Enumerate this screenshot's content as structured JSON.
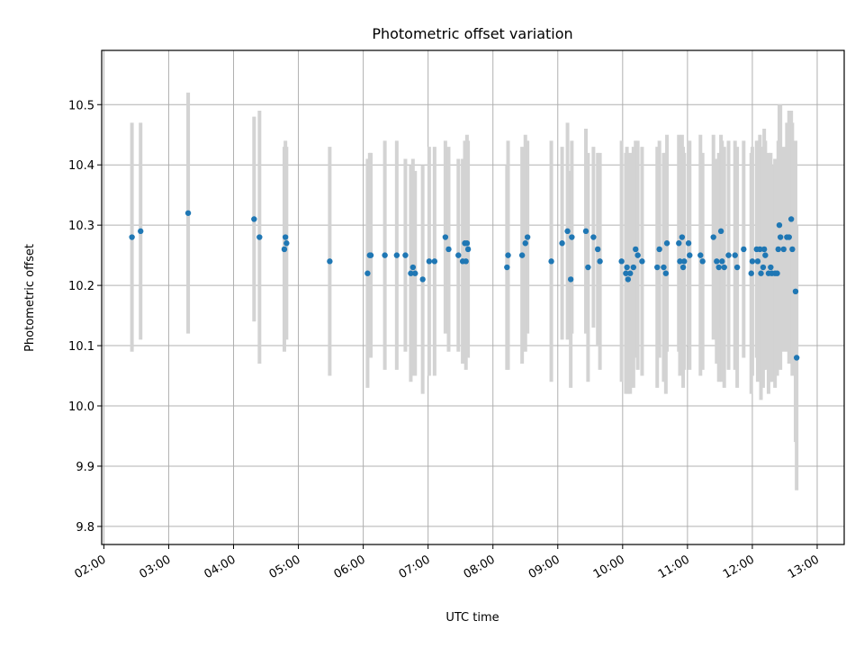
{
  "chart_data": {
    "type": "scatter",
    "title": "Photometric offset variation",
    "xlabel": "UTC time",
    "ylabel": "Photometric offset",
    "x_unit": "hours UTC",
    "xlim": [
      "01:58",
      "13:25"
    ],
    "ylim": [
      9.77,
      10.59
    ],
    "x_ticks": [
      "02:00",
      "03:00",
      "04:00",
      "05:00",
      "06:00",
      "07:00",
      "08:00",
      "09:00",
      "10:00",
      "11:00",
      "12:00",
      "13:00"
    ],
    "y_ticks": [
      "9.8",
      "9.9",
      "10.0",
      "10.1",
      "10.2",
      "10.3",
      "10.4",
      "10.5"
    ],
    "grid": true,
    "legend": "none",
    "colors": {
      "point": "#1f77b4",
      "errorbar": "#d3d3d3",
      "grid": "#b0b0b0"
    },
    "series": [
      {
        "points": [
          [
            "02:26",
            10.28,
            0.19
          ],
          [
            "02:34",
            10.29,
            0.18
          ],
          [
            "03:18",
            10.32,
            0.2
          ],
          [
            "04:19",
            10.31,
            0.17
          ],
          [
            "04:24",
            10.28,
            0.21
          ],
          [
            "04:47",
            10.26,
            0.17
          ],
          [
            "04:48",
            10.28,
            0.16
          ],
          [
            "04:49",
            10.27,
            0.16
          ],
          [
            "05:29",
            10.24,
            0.19
          ],
          [
            "06:04",
            10.22,
            0.19
          ],
          [
            "06:06",
            10.25,
            0.17
          ],
          [
            "06:07",
            10.25,
            0.17
          ],
          [
            "06:20",
            10.25,
            0.19
          ],
          [
            "06:31",
            10.25,
            0.19
          ],
          [
            "06:39",
            10.25,
            0.16
          ],
          [
            "06:44",
            10.22,
            0.18
          ],
          [
            "06:46",
            10.23,
            0.18
          ],
          [
            "06:48",
            10.22,
            0.17
          ],
          [
            "06:55",
            10.21,
            0.19
          ],
          [
            "07:01",
            10.24,
            0.19
          ],
          [
            "07:06",
            10.24,
            0.19
          ],
          [
            "07:16",
            10.28,
            0.16
          ],
          [
            "07:19",
            10.26,
            0.17
          ],
          [
            "07:28",
            10.25,
            0.16
          ],
          [
            "07:32",
            10.24,
            0.17
          ],
          [
            "07:34",
            10.27,
            0.17
          ],
          [
            "07:35",
            10.24,
            0.18
          ],
          [
            "07:36",
            10.27,
            0.18
          ],
          [
            "07:37",
            10.26,
            0.18
          ],
          [
            "08:13",
            10.23,
            0.17
          ],
          [
            "08:14",
            10.25,
            0.19
          ],
          [
            "08:27",
            10.25,
            0.18
          ],
          [
            "08:30",
            10.27,
            0.18
          ],
          [
            "08:32",
            10.28,
            0.16
          ],
          [
            "08:54",
            10.24,
            0.2
          ],
          [
            "09:04",
            10.27,
            0.16
          ],
          [
            "09:09",
            10.29,
            0.18
          ],
          [
            "09:12",
            10.21,
            0.18
          ],
          [
            "09:13",
            10.28,
            0.16
          ],
          [
            "09:26",
            10.29,
            0.17
          ],
          [
            "09:28",
            10.23,
            0.19
          ],
          [
            "09:33",
            10.28,
            0.15
          ],
          [
            "09:37",
            10.26,
            0.16
          ],
          [
            "09:39",
            10.24,
            0.18
          ],
          [
            "09:59",
            10.24,
            0.2
          ],
          [
            "10:03",
            10.22,
            0.2
          ],
          [
            "10:04",
            10.23,
            0.2
          ],
          [
            "10:05",
            10.21,
            0.19
          ],
          [
            "10:07",
            10.22,
            0.2
          ],
          [
            "10:10",
            10.23,
            0.2
          ],
          [
            "10:12",
            10.26,
            0.18
          ],
          [
            "10:14",
            10.25,
            0.19
          ],
          [
            "10:18",
            10.24,
            0.19
          ],
          [
            "10:32",
            10.23,
            0.2
          ],
          [
            "10:34",
            10.26,
            0.18
          ],
          [
            "10:38",
            10.23,
            0.19
          ],
          [
            "10:40",
            10.22,
            0.2
          ],
          [
            "10:41",
            10.27,
            0.18
          ],
          [
            "10:52",
            10.27,
            0.18
          ],
          [
            "10:53",
            10.24,
            0.19
          ],
          [
            "10:55",
            10.28,
            0.17
          ],
          [
            "10:56",
            10.23,
            0.2
          ],
          [
            "10:57",
            10.24,
            0.18
          ],
          [
            "11:01",
            10.27,
            0.17
          ],
          [
            "11:02",
            10.25,
            0.19
          ],
          [
            "11:12",
            10.25,
            0.2
          ],
          [
            "11:14",
            10.24,
            0.18
          ],
          [
            "11:24",
            10.28,
            0.17
          ],
          [
            "11:27",
            10.24,
            0.17
          ],
          [
            "11:29",
            10.23,
            0.19
          ],
          [
            "11:31",
            10.29,
            0.16
          ],
          [
            "11:32",
            10.24,
            0.2
          ],
          [
            "11:34",
            10.23,
            0.2
          ],
          [
            "11:38",
            10.25,
            0.19
          ],
          [
            "11:44",
            10.25,
            0.19
          ],
          [
            "11:46",
            10.23,
            0.2
          ],
          [
            "11:52",
            10.26,
            0.18
          ],
          [
            "11:59",
            10.22,
            0.2
          ],
          [
            "12:00",
            10.24,
            0.19
          ],
          [
            "12:04",
            10.26,
            0.18
          ],
          [
            "12:05",
            10.24,
            0.2
          ],
          [
            "12:07",
            10.26,
            0.19
          ],
          [
            "12:08",
            10.22,
            0.21
          ],
          [
            "12:10",
            10.23,
            0.2
          ],
          [
            "12:11",
            10.26,
            0.2
          ],
          [
            "12:12",
            10.25,
            0.19
          ],
          [
            "12:15",
            10.22,
            0.2
          ],
          [
            "12:17",
            10.23,
            0.19
          ],
          [
            "12:18",
            10.22,
            0.18
          ],
          [
            "12:21",
            10.22,
            0.19
          ],
          [
            "12:23",
            10.22,
            0.17
          ],
          [
            "12:24",
            10.26,
            0.18
          ],
          [
            "12:25",
            10.3,
            0.2
          ],
          [
            "12:26",
            10.28,
            0.22
          ],
          [
            "12:29",
            10.26,
            0.17
          ],
          [
            "12:32",
            10.28,
            0.19
          ],
          [
            "12:34",
            10.28,
            0.21
          ],
          [
            "12:36",
            10.31,
            0.18
          ],
          [
            "12:37",
            10.26,
            0.21
          ],
          [
            "12:40",
            10.19,
            0.25
          ],
          [
            "12:41",
            10.08,
            0.22
          ]
        ]
      }
    ]
  }
}
